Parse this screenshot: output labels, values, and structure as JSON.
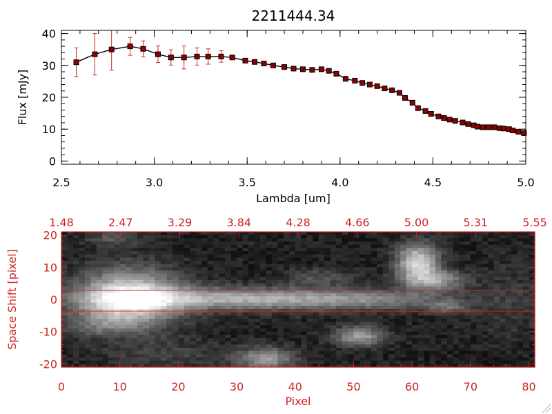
{
  "chart_data": [
    {
      "type": "line",
      "title": "2211444.34",
      "xlabel": "Lambda [um]",
      "ylabel": "Flux [mJy]",
      "xlim": [
        2.5,
        5.0
      ],
      "ylim": [
        -1,
        41
      ],
      "x_ticks": [
        "2.5",
        "3.0",
        "3.5",
        "4.0",
        "4.5",
        "5.0"
      ],
      "y_ticks": [
        "0",
        "10",
        "20",
        "30",
        "40"
      ],
      "line_color": "#000000",
      "marker_color": "#8b0000",
      "errorbar_color": "#cc2222",
      "series": [
        {
          "x": [
            2.58,
            2.68,
            2.77,
            2.87,
            2.94,
            3.02,
            3.09,
            3.16,
            3.23,
            3.29,
            3.36,
            3.42,
            3.49,
            3.54,
            3.59,
            3.64,
            3.7,
            3.75,
            3.8,
            3.85,
            3.9,
            3.94,
            3.98,
            4.03,
            4.08,
            4.12,
            4.16,
            4.2,
            4.24,
            4.28,
            4.32,
            4.35,
            4.39,
            4.42,
            4.46,
            4.49,
            4.53,
            4.56,
            4.59,
            4.62,
            4.66,
            4.69,
            4.72,
            4.74,
            4.77,
            4.8,
            4.83,
            4.86,
            4.88,
            4.91,
            4.93,
            4.96,
            4.99
          ],
          "y": [
            31,
            33.5,
            35,
            36,
            35.2,
            33.5,
            32.5,
            32.5,
            32.8,
            32.8,
            32.8,
            32.5,
            31.5,
            31.1,
            30.6,
            30,
            29.5,
            29,
            28.8,
            28.6,
            28.8,
            28.3,
            27.4,
            25.8,
            25.2,
            24.5,
            24,
            23.5,
            22.8,
            22.2,
            21.4,
            19.8,
            18.3,
            16.6,
            15.7,
            14.8,
            14,
            13.5,
            13,
            12.6,
            12.1,
            11.6,
            11.2,
            10.8,
            10.6,
            10.6,
            10.6,
            10.3,
            10.2,
            10,
            9.6,
            9.2,
            8.8
          ],
          "yerr": [
            4.5,
            6.5,
            6.5,
            2.8,
            2.5,
            2.6,
            2.4,
            3.6,
            2.7,
            2.4,
            1.8,
            0.6,
            0.5,
            0.5,
            0.5,
            0.5,
            0.5,
            0.5,
            0.5,
            0.5,
            0.5,
            0.5,
            0.5,
            0.5,
            0.5,
            0.5,
            0.5,
            0.5,
            0.5,
            0.5,
            0.5,
            0.5,
            0.5,
            0.5,
            0.5,
            0.5,
            0.5,
            0.5,
            0.5,
            0.5,
            0.5,
            0.5,
            0.5,
            0.5,
            0.5,
            0.5,
            0.5,
            0.5,
            0.5,
            0.5,
            0.5,
            0.5,
            0.5
          ]
        }
      ]
    },
    {
      "type": "heatmap",
      "title": "",
      "xlabel": "Pixel",
      "ylabel": "Space Shift [pixel]",
      "xlim": [
        0,
        81
      ],
      "ylim": [
        -21,
        21
      ],
      "x_ticks": [
        "0",
        "10",
        "20",
        "30",
        "40",
        "50",
        "60",
        "70",
        "80"
      ],
      "y_ticks": [
        "-20",
        "-10",
        "0",
        "10",
        "20"
      ],
      "top_ticks": [
        "1.48",
        "2.47",
        "3.29",
        "3.84",
        "4.28",
        "4.66",
        "5.00",
        "5.31",
        "5.55"
      ],
      "accent_color": "#cc2222",
      "extraction_aperture": [
        -3,
        3
      ],
      "emission": [
        {
          "x": 11.5,
          "y": 0.3,
          "sx": 6,
          "sy": 6,
          "amp": 0.85
        },
        {
          "x": 30,
          "y": 0.2,
          "sx": 16,
          "sy": 2.4,
          "amp": 0.55
        },
        {
          "x": 54,
          "y": 0,
          "sx": 10,
          "sy": 2.2,
          "amp": 0.22
        },
        {
          "x": 61,
          "y": 11.5,
          "sx": 2.5,
          "sy": 4,
          "amp": 0.72
        },
        {
          "x": 64,
          "y": 6,
          "sx": 3.5,
          "sy": 2.2,
          "amp": 0.45
        },
        {
          "x": 51,
          "y": -11.5,
          "sx": 3,
          "sy": 2.2,
          "amp": 0.5
        },
        {
          "x": 35,
          "y": -18.5,
          "sx": 3.5,
          "sy": 2.5,
          "amp": 0.45
        },
        {
          "x": 9,
          "y": 19,
          "sx": 3,
          "sy": 2,
          "amp": 0.2
        },
        {
          "x": 6,
          "y": -8,
          "sx": 5,
          "sy": 2.5,
          "amp": 0.16
        },
        {
          "x": 44,
          "y": 7,
          "sx": 4,
          "sy": 2,
          "amp": 0.18
        },
        {
          "x": 18,
          "y": -17,
          "sx": 8,
          "sy": 3,
          "amp": 0.12
        },
        {
          "x": 77,
          "y": 0,
          "sx": 4,
          "sy": 8,
          "amp": 0.1
        },
        {
          "x": 66,
          "y": -2.5,
          "sx": 2.5,
          "sy": 1.5,
          "amp": 0.25
        }
      ]
    }
  ]
}
